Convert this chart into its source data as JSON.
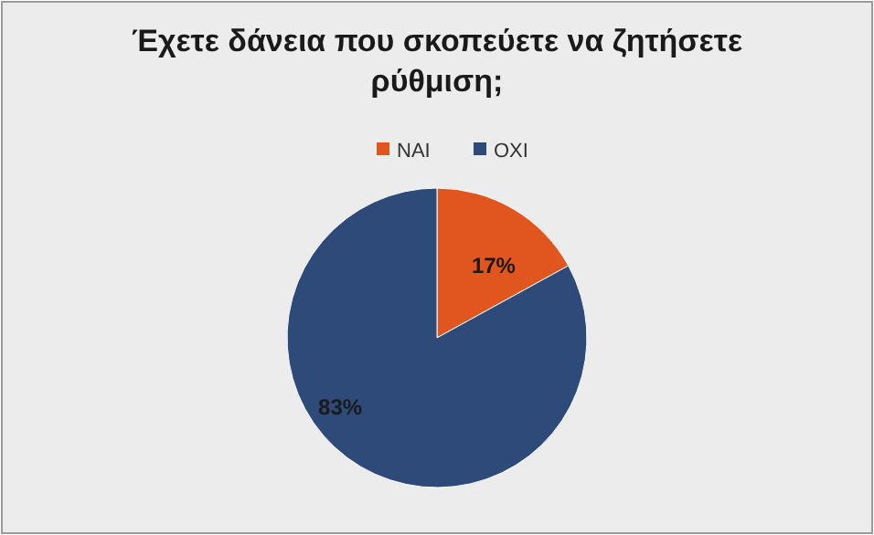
{
  "chart_data": {
    "type": "pie",
    "title": "Έχετε δάνεια που σκοπεύετε να ζητήσετε ρύθμιση;",
    "categories": [
      "NAI",
      "OXI"
    ],
    "values": [
      17,
      83
    ],
    "colors": [
      "#e0561e",
      "#2d4a79"
    ],
    "value_labels": [
      "17%",
      "83%"
    ],
    "legend": "top"
  }
}
